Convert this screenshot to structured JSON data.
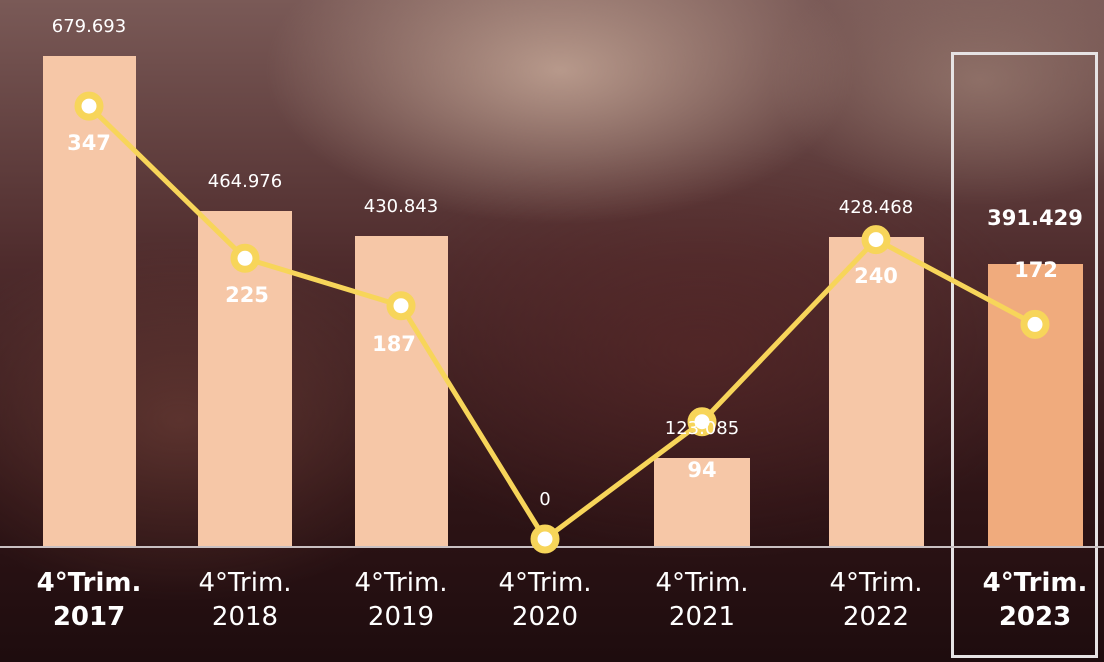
{
  "chart_data": {
    "type": "bar+line",
    "categories": [
      "4°Trim. 2017",
      "4°Trim. 2018",
      "4°Trim. 2019",
      "4°Trim. 2020",
      "4°Trim. 2021",
      "4°Trim. 2022",
      "4°Trim. 2023"
    ],
    "x_tick_lines": [
      [
        "4°Trim.",
        "2017"
      ],
      [
        "4°Trim.",
        "2018"
      ],
      [
        "4°Trim.",
        "2019"
      ],
      [
        "4°Trim.",
        "2020"
      ],
      [
        "4°Trim.",
        "2021"
      ],
      [
        "4°Trim.",
        "2022"
      ],
      [
        "4°Trim.",
        "2023"
      ]
    ],
    "bold_ticks": [
      true,
      false,
      false,
      false,
      false,
      false,
      true
    ],
    "series": [
      {
        "type": "bar",
        "values": [
          679693,
          464976,
          430843,
          0,
          123085,
          428468,
          391429
        ],
        "value_labels": [
          "679.693",
          "464.976",
          "430.843",
          "0",
          "123.085",
          "428.468",
          "391.429"
        ],
        "color": "#f6c7a7",
        "highlight_color": "#f0ab7d"
      },
      {
        "type": "line",
        "values": [
          347,
          225,
          187,
          0,
          94,
          240,
          172
        ],
        "value_labels": [
          "347",
          "225",
          "187",
          "0",
          "94",
          "240",
          "172"
        ],
        "color": "#f7d55a"
      }
    ],
    "highlighted_category": "4°Trim. 2023",
    "grid": false,
    "legend": "none"
  }
}
